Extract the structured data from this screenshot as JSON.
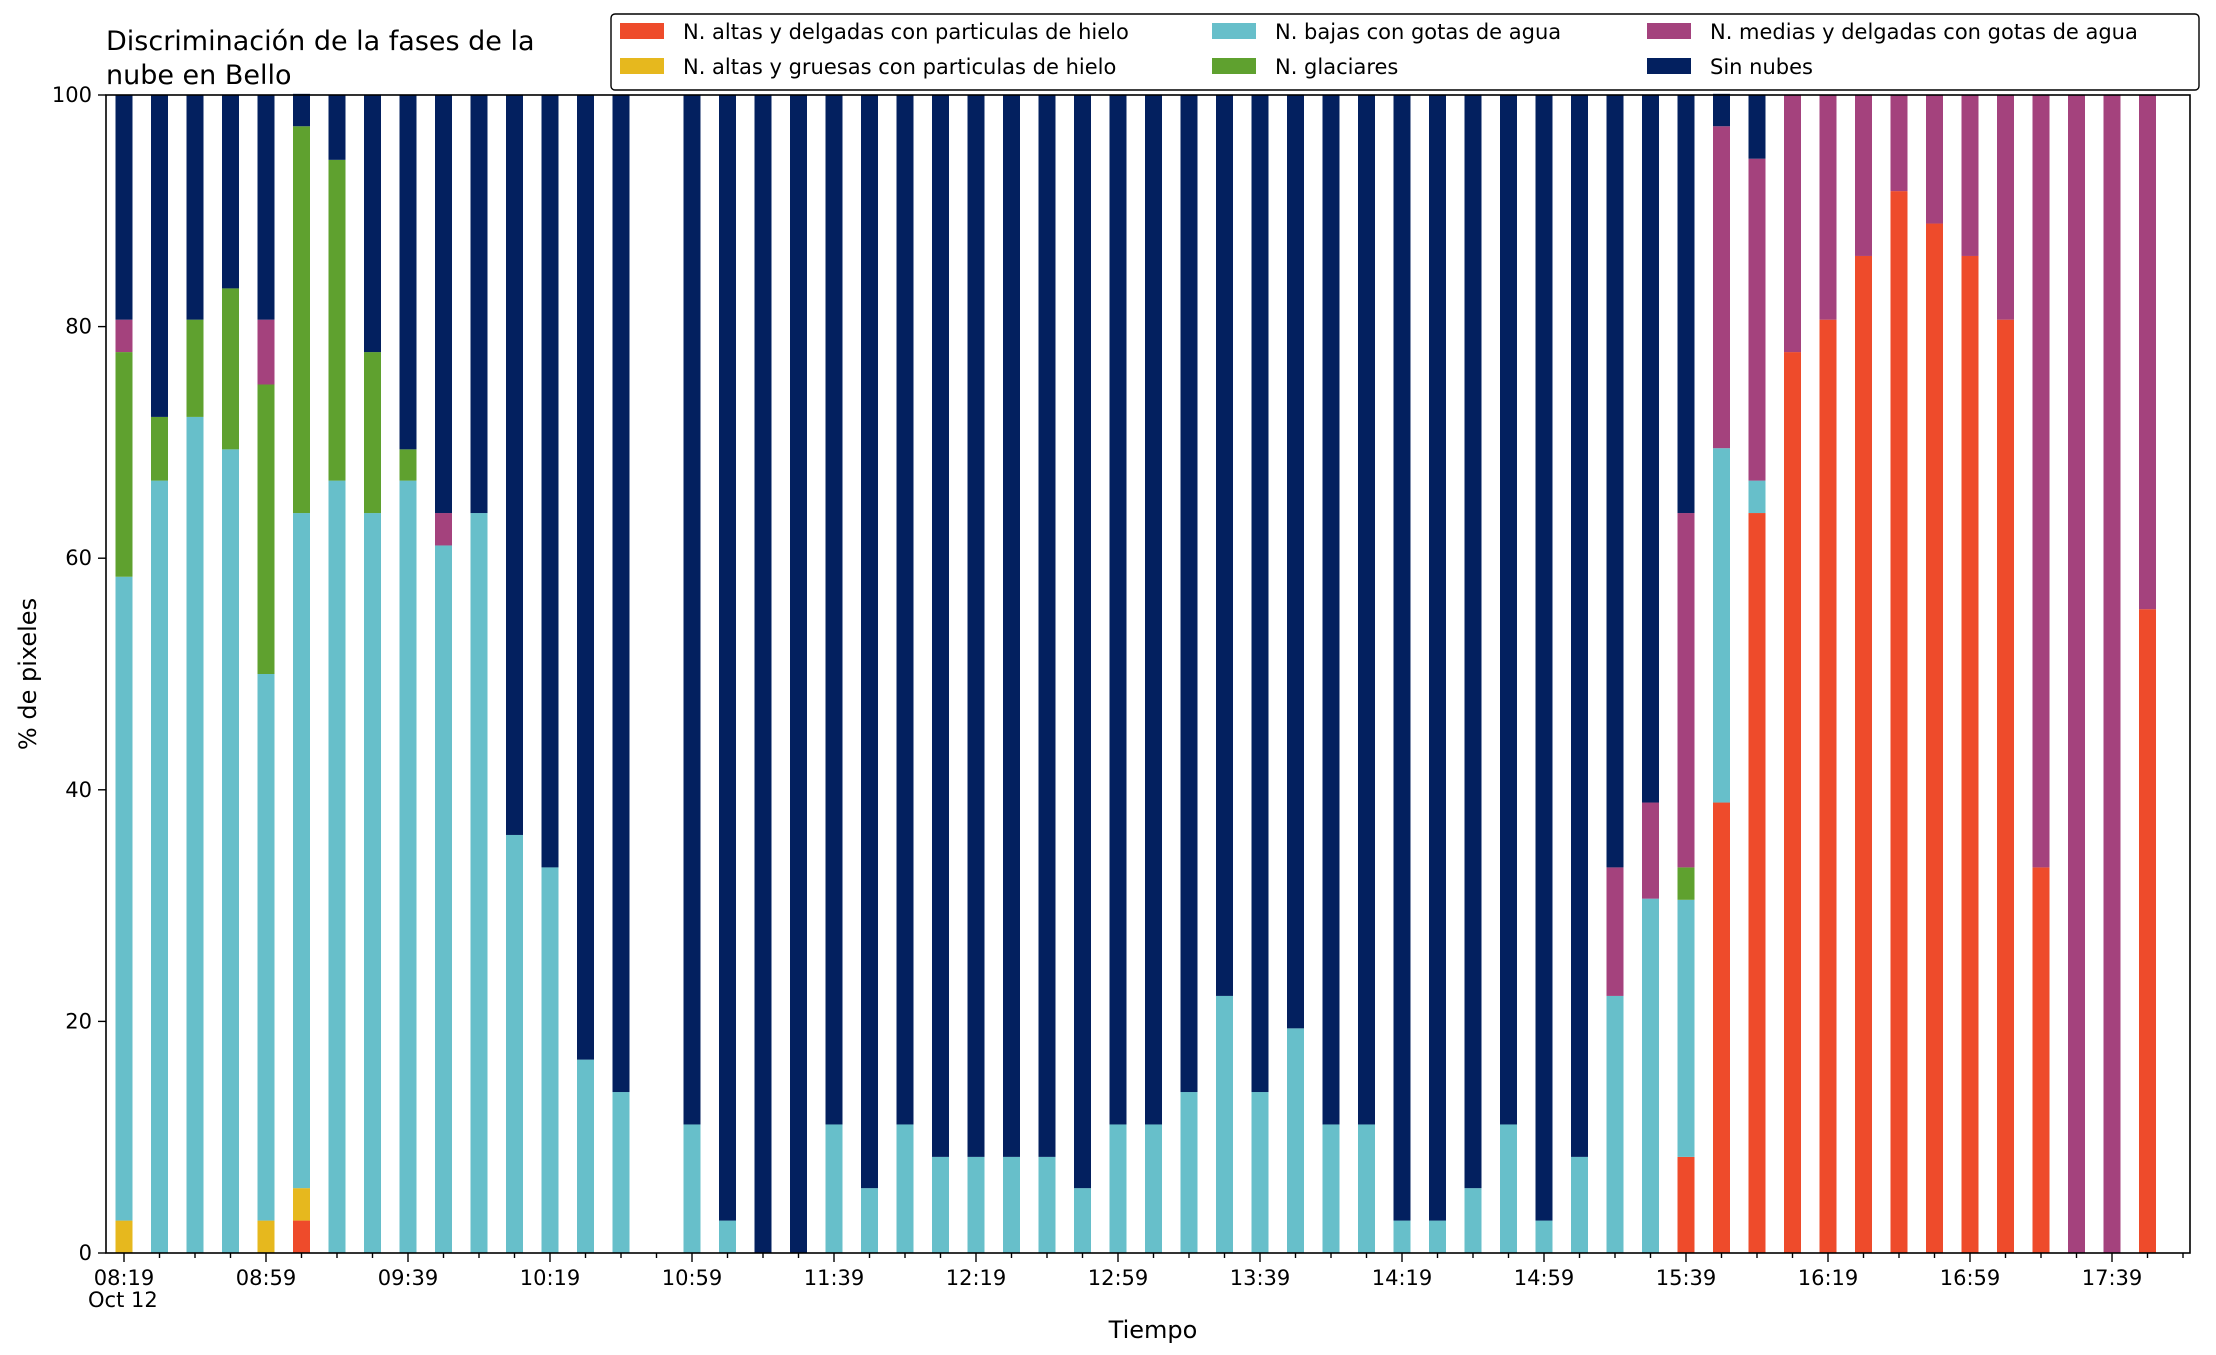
{
  "chart_data": {
    "type": "bar",
    "stacked": true,
    "title": "Discriminación de la fases de la nube en Bello",
    "title_lines": [
      "Discriminación de la fases de la",
      "nube en Bello"
    ],
    "xlabel": "Tiempo",
    "ylabel": "% de pixeles",
    "ylim": [
      0,
      100
    ],
    "y_ticks": [
      "0",
      "20",
      "40",
      "60",
      "80",
      "100"
    ],
    "x_date_label": "Oct 12",
    "x_tick_labels": [
      "08:19",
      "08:59",
      "09:39",
      "10:19",
      "10:59",
      "11:39",
      "12:19",
      "12:59",
      "13:39",
      "14:19",
      "14:59",
      "15:39",
      "16:19",
      "16:59",
      "17:39"
    ],
    "legend_position": "top-right",
    "grid": false,
    "categories": [
      "08:19",
      "08:29",
      "08:39",
      "08:49",
      "08:59",
      "09:09",
      "09:19",
      "09:29",
      "09:39",
      "09:49",
      "09:59",
      "10:09",
      "10:19",
      "10:29",
      "10:39",
      "10:49",
      "10:59",
      "11:09",
      "11:19",
      "11:29",
      "11:39",
      "11:49",
      "11:59",
      "12:09",
      "12:19",
      "12:29",
      "12:39",
      "12:49",
      "12:59",
      "13:09",
      "13:19",
      "13:29",
      "13:39",
      "13:49",
      "13:59",
      "14:09",
      "14:19",
      "14:29",
      "14:39",
      "14:49",
      "14:59",
      "15:09",
      "15:19",
      "15:29",
      "15:39",
      "15:49",
      "15:59",
      "16:09",
      "16:19",
      "16:29",
      "16:39",
      "16:49",
      "16:59",
      "17:09",
      "17:19",
      "17:29",
      "17:39",
      "17:49"
    ],
    "series": [
      {
        "name": "N. altas y delgadas con particulas de hielo",
        "color": "#ee4b2b",
        "values": [
          0,
          0,
          0,
          0,
          0,
          2.8,
          0,
          0,
          0,
          0,
          0,
          0,
          0,
          0,
          0,
          0,
          0,
          0,
          0,
          0,
          0,
          0,
          0,
          0,
          0,
          0,
          0,
          0,
          0,
          0,
          0,
          0,
          0,
          0,
          0,
          0,
          0,
          0,
          0,
          0,
          0,
          0,
          0,
          0,
          8.3,
          38.9,
          63.9,
          77.8,
          80.6,
          86.1,
          91.7,
          88.9,
          86.1,
          80.6,
          33.3,
          0,
          0,
          55.6
        ]
      },
      {
        "name": "N. altas y gruesas con particulas de hielo",
        "color": "#e6b81e",
        "values": [
          2.8,
          0,
          0,
          0,
          2.8,
          2.8,
          0,
          0,
          0,
          0,
          0,
          0,
          0,
          0,
          0,
          0,
          0,
          0,
          0,
          0,
          0,
          0,
          0,
          0,
          0,
          0,
          0,
          0,
          0,
          0,
          0,
          0,
          0,
          0,
          0,
          0,
          0,
          0,
          0,
          0,
          0,
          0,
          0,
          0,
          0,
          0,
          0,
          0,
          0,
          0,
          0,
          0,
          0,
          0,
          0,
          0,
          0,
          0
        ]
      },
      {
        "name": "N. bajas con gotas de agua",
        "color": "#67bfca",
        "values": [
          55.6,
          66.7,
          72.2,
          69.4,
          47.2,
          58.3,
          66.7,
          63.9,
          66.7,
          61.1,
          63.9,
          36.1,
          33.3,
          16.7,
          13.9,
          0,
          11.1,
          2.8,
          0,
          0,
          11.1,
          5.6,
          11.1,
          8.3,
          8.3,
          8.3,
          8.3,
          5.6,
          11.1,
          11.1,
          13.9,
          22.2,
          13.9,
          19.4,
          11.1,
          11.1,
          2.8,
          2.8,
          5.6,
          11.1,
          2.8,
          8.3,
          22.2,
          30.6,
          22.2,
          30.6,
          2.8,
          0,
          0,
          0,
          0,
          0,
          0,
          0,
          0,
          0,
          0,
          0
        ]
      },
      {
        "name": "N. glaciares",
        "color": "#5fa12f",
        "values": [
          19.4,
          5.5,
          8.4,
          13.9,
          25.0,
          33.4,
          27.7,
          13.9,
          2.7,
          0,
          0,
          0,
          0,
          0,
          0,
          0,
          0,
          0,
          0,
          0,
          0,
          0,
          0,
          0,
          0,
          0,
          0,
          0,
          0,
          0,
          0,
          0,
          0,
          0,
          0,
          0,
          0,
          0,
          0,
          0,
          0,
          0,
          0,
          0,
          2.8,
          0,
          0,
          0,
          0,
          0,
          0,
          0,
          0,
          0,
          0,
          0,
          0,
          0
        ]
      },
      {
        "name": "N. medias y delgadas con gotas de agua",
        "color": "#a4427d",
        "values": [
          2.8,
          0,
          0,
          0,
          5.6,
          0,
          0,
          0,
          0,
          2.8,
          0,
          0,
          0,
          0,
          0,
          0,
          0,
          0,
          0,
          0,
          0,
          0,
          0,
          0,
          0,
          0,
          0,
          0,
          0,
          0,
          0,
          0,
          0,
          0,
          0,
          0,
          0,
          0,
          0,
          0,
          0,
          0,
          11.1,
          8.3,
          30.6,
          27.8,
          27.8,
          22.2,
          19.4,
          13.9,
          8.3,
          11.1,
          13.9,
          19.4,
          66.7,
          100,
          100,
          44.4
        ]
      },
      {
        "name": "Sin nubes",
        "color": "#03205f",
        "values": [
          19.4,
          27.8,
          19.4,
          16.7,
          19.4,
          2.8,
          5.6,
          22.2,
          30.6,
          36.1,
          36.1,
          63.9,
          66.7,
          83.3,
          86.1,
          0,
          88.9,
          97.2,
          100,
          100,
          88.9,
          94.4,
          88.9,
          91.7,
          91.7,
          91.7,
          91.7,
          94.4,
          88.9,
          88.9,
          86.1,
          77.8,
          86.1,
          80.6,
          88.9,
          88.9,
          97.2,
          97.2,
          94.4,
          88.9,
          97.2,
          91.7,
          66.7,
          61.1,
          36.1,
          2.8,
          5.5,
          0,
          0,
          0,
          0,
          0,
          0,
          0,
          0,
          0,
          0,
          0
        ]
      }
    ]
  }
}
